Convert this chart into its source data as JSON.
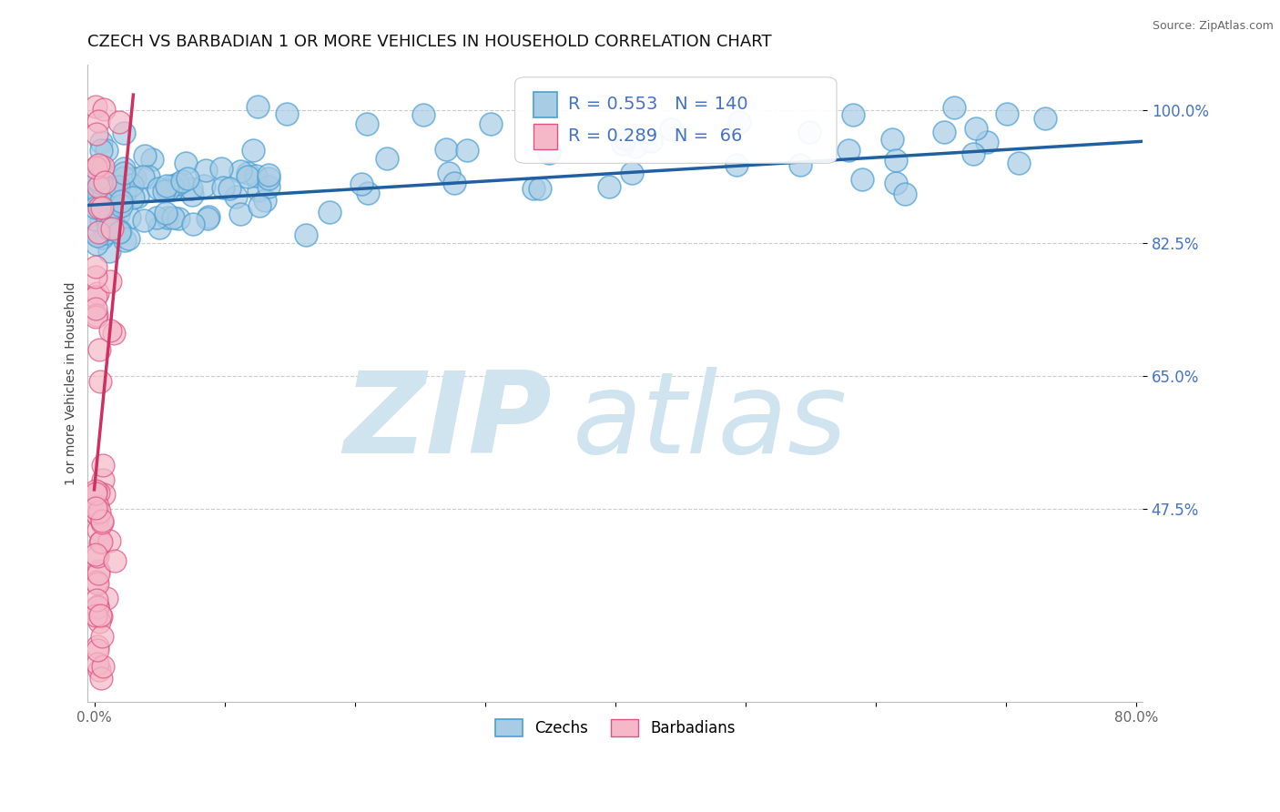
{
  "title": "CZECH VS BARBADIAN 1 OR MORE VEHICLES IN HOUSEHOLD CORRELATION CHART",
  "source": "Source: ZipAtlas.com",
  "ylabel": "1 or more Vehicles in Household",
  "xlim": [
    -0.005,
    0.805
  ],
  "ylim": [
    0.22,
    1.06
  ],
  "xticks": [
    0.0,
    0.1,
    0.2,
    0.3,
    0.4,
    0.5,
    0.6,
    0.7,
    0.8
  ],
  "xticklabels": [
    "0.0%",
    "",
    "",
    "",
    "",
    "",
    "",
    "",
    "80.0%"
  ],
  "ytick_values": [
    0.475,
    0.65,
    0.825,
    1.0
  ],
  "ytick_labels": [
    "47.5%",
    "65.0%",
    "82.5%",
    "100.0%"
  ],
  "czech_color": "#a8cce4",
  "czech_edge_color": "#4a9fd4",
  "barbadian_color": "#f4b8c8",
  "barbadian_edge_color": "#e05080",
  "trendline_czech_color": "#2060a0",
  "trendline_barb_color": "#d03060",
  "R_czech": 0.553,
  "N_czech": 140,
  "R_barbadian": 0.289,
  "N_barbadian": 66,
  "watermark_zip": "ZIP",
  "watermark_atlas": "atlas",
  "watermark_color": "#d0e4f0",
  "legend_czechs": "Czechs",
  "legend_barbadians": "Barbadians",
  "title_fontsize": 13,
  "axis_label_fontsize": 10,
  "tick_fontsize": 11,
  "legend_fontsize": 12,
  "stats_fontsize": 14
}
